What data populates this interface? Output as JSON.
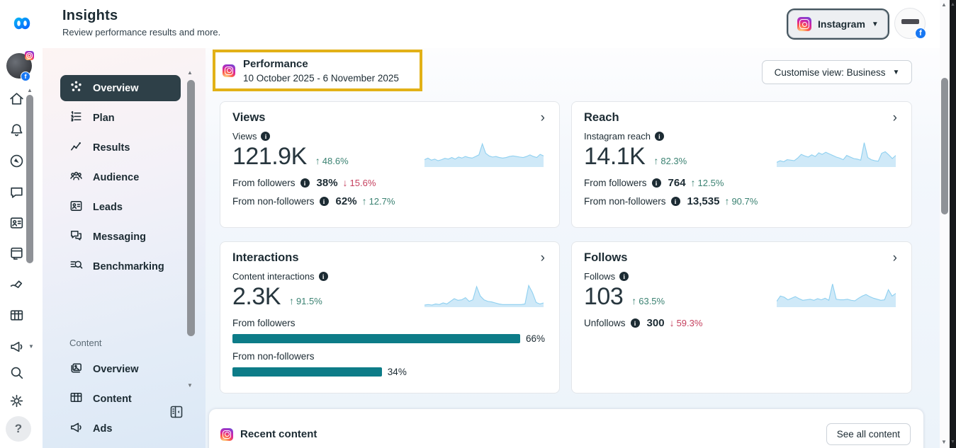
{
  "topbar": {
    "title": "Insights",
    "subtitle": "Review performance results and more.",
    "account_selector": {
      "label": "Instagram"
    }
  },
  "rail": {
    "icons": [
      "home",
      "notifications",
      "ads-manager",
      "messages",
      "leads",
      "planner",
      "create",
      "tables",
      "promote",
      "search",
      "settings",
      "help"
    ]
  },
  "sidebar": {
    "items": [
      {
        "label": "Overview",
        "selected": true
      },
      {
        "label": "Plan"
      },
      {
        "label": "Results"
      },
      {
        "label": "Audience"
      },
      {
        "label": "Leads"
      },
      {
        "label": "Messaging"
      },
      {
        "label": "Benchmarking"
      }
    ],
    "content_section": {
      "label": "Content",
      "items": [
        {
          "label": "Overview"
        },
        {
          "label": "Content"
        },
        {
          "label": "Ads"
        }
      ]
    }
  },
  "performance_header": {
    "title": "Performance",
    "date_range": "10 October 2025 - 6 November 2025"
  },
  "customise_view_label": "Customise view: Business",
  "cards": {
    "views": {
      "title": "Views",
      "metric_label": "Views",
      "value": "121.9K",
      "delta": "48.6%",
      "delta_dir": "up",
      "rows": [
        {
          "label": "From followers",
          "value": "38%",
          "delta": "15.6%",
          "dir": "down"
        },
        {
          "label": "From non-followers",
          "value": "62%",
          "delta": "12.7%",
          "dir": "up"
        }
      ],
      "sparkline": [
        28,
        34,
        26,
        30,
        24,
        28,
        33,
        30,
        36,
        30,
        38,
        34,
        40,
        36,
        34,
        40,
        46,
        88,
        52,
        42,
        38,
        40,
        36,
        34,
        36,
        40,
        42,
        40,
        38,
        36,
        40,
        46,
        40,
        36,
        48,
        42
      ]
    },
    "reach": {
      "title": "Reach",
      "metric_label": "Instagram reach",
      "value": "14.1K",
      "delta": "82.3%",
      "delta_dir": "up",
      "rows": [
        {
          "label": "From followers",
          "value": "764",
          "delta": "12.5%",
          "dir": "up"
        },
        {
          "label": "From non-followers",
          "value": "13,535",
          "delta": "90.7%",
          "dir": "up"
        }
      ],
      "sparkline": [
        18,
        24,
        20,
        28,
        26,
        24,
        34,
        48,
        42,
        38,
        46,
        40,
        54,
        48,
        56,
        50,
        44,
        38,
        34,
        28,
        44,
        38,
        32,
        30,
        26,
        92,
        36,
        28,
        24,
        22,
        52,
        58,
        46,
        32,
        44
      ]
    },
    "interactions": {
      "title": "Interactions",
      "metric_label": "Content interactions",
      "value": "2.3K",
      "delta": "91.5%",
      "delta_dir": "up",
      "bars": [
        {
          "label": "From followers",
          "pct": 66,
          "pct_label": "66%"
        },
        {
          "label": "From non-followers",
          "pct": 34,
          "pct_label": "34%"
        }
      ],
      "sparkline": [
        8,
        10,
        8,
        12,
        10,
        16,
        12,
        22,
        32,
        26,
        28,
        36,
        22,
        28,
        78,
        42,
        28,
        22,
        20,
        16,
        12,
        10,
        10,
        10,
        10,
        10,
        10,
        12,
        82,
        56,
        18,
        12,
        16
      ]
    },
    "follows": {
      "title": "Follows",
      "metric_label": "Follows",
      "value": "103",
      "delta": "63.5%",
      "delta_dir": "up",
      "rows": [
        {
          "label": "Unfollows",
          "value": "300",
          "delta": "59.3%",
          "dir": "down"
        }
      ],
      "sparkline": [
        22,
        42,
        38,
        28,
        34,
        40,
        32,
        26,
        28,
        30,
        26,
        32,
        28,
        34,
        26,
        88,
        30,
        28,
        28,
        30,
        26,
        24,
        34,
        42,
        48,
        40,
        34,
        30,
        26,
        28,
        66,
        42,
        52
      ]
    }
  },
  "recent_content": {
    "title": "Recent content",
    "see_all_label": "See all content"
  },
  "colors": {
    "positive": "#3b8272",
    "negative": "#c5405e",
    "bar_teal": "#0d7c88",
    "spark_fill": "#cfe9f8",
    "spark_stroke": "#8fd0f0",
    "highlight_yellow": "#e2b117",
    "selected_nav": "#2e4048",
    "meta_blue": "#0866ff",
    "facebook_blue": "#1877f2"
  }
}
